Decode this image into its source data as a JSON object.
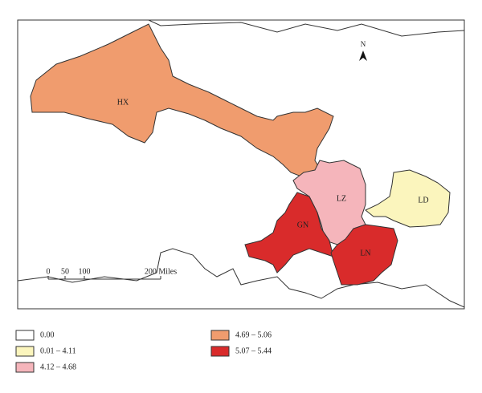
{
  "map": {
    "north": "N",
    "regions": [
      {
        "label": "HX",
        "color": "#f09c6e"
      },
      {
        "label": "LZ",
        "color": "#f5b5bb"
      },
      {
        "label": "GN",
        "color": "#d92b2b"
      },
      {
        "label": "LN",
        "color": "#d92b2b"
      },
      {
        "label": "LD",
        "color": "#fbf5bd"
      }
    ],
    "scale_bar": [
      "0",
      "50",
      "100",
      "200 Miles"
    ],
    "legend": [
      {
        "label": "0.00",
        "color": "#ffffff"
      },
      {
        "label": "0.01 – 4.11",
        "color": "#fbf5bd"
      },
      {
        "label": "4.12 – 4.68",
        "color": "#f5b5bb"
      },
      {
        "label": "4.69 – 5.06",
        "color": "#f09c6e"
      },
      {
        "label": "5.07 – 5.44",
        "color": "#d92b2b"
      }
    ]
  }
}
